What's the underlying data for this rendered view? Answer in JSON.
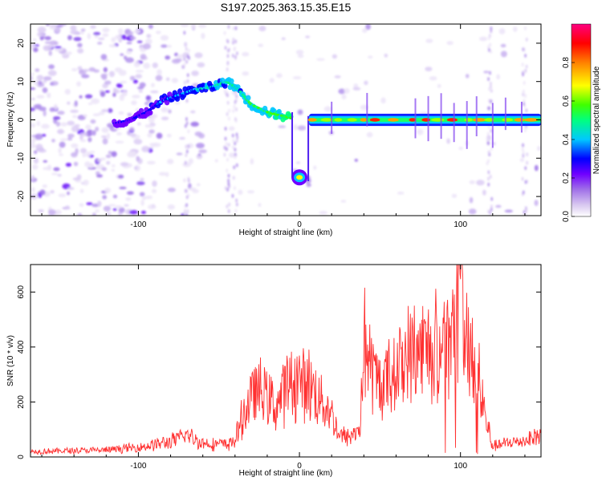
{
  "figure_title": "S197.2025.363.15.35.E15",
  "chart_data": [
    {
      "type": "heatmap",
      "title": "S197.2025.363.15.35.E15",
      "xlabel": "Height of straight line (km)",
      "ylabel": "Frequency (Hz)",
      "xlim": [
        -167,
        150
      ],
      "ylim": [
        -25,
        25
      ],
      "xticks": [
        -100,
        0,
        100
      ],
      "yticks": [
        -20,
        -10,
        0,
        10,
        20
      ],
      "colorbar": {
        "label": "Normalized spectral amplitude",
        "range": [
          0,
          1
        ],
        "ticks": [
          0.0,
          0.2,
          0.4,
          0.6,
          0.8
        ],
        "colormap": [
          "#ffffff",
          "#d8c8f0",
          "#a070e8",
          "#7000ff",
          "#0000ff",
          "#00c8ff",
          "#00ff80",
          "#40ff00",
          "#ffff00",
          "#ff8000",
          "#ff0000",
          "#ff0080"
        ]
      },
      "ridge": {
        "description": "dominant frequency trace",
        "x": [
          -115,
          -105,
          -95,
          -85,
          -75,
          -65,
          -55,
          -45,
          -38,
          -30,
          -20,
          -10,
          -5
        ],
        "y": [
          -1,
          0,
          2,
          5,
          6.5,
          8,
          8.5,
          10,
          8,
          4,
          2,
          1,
          0.5
        ],
        "gap_x": [
          -5,
          6
        ],
        "gap_feature": {
          "x": 0,
          "y": -15
        },
        "flat_segment": {
          "x_from": 6,
          "x_to": 150,
          "y": 0
        }
      }
    },
    {
      "type": "line",
      "xlabel": "Height of straight line (km)",
      "ylabel": "SNR (10 * v/v)",
      "xlim": [
        -167,
        150
      ],
      "ylim": [
        0,
        700
      ],
      "xticks": [
        -100,
        0,
        100
      ],
      "yticks": [
        0,
        200,
        400,
        600
      ],
      "series": [
        {
          "name": "SNR",
          "color": "#ff3030",
          "x": [
            -167,
            -120,
            -100,
            -80,
            -70,
            -60,
            -45,
            -40,
            -35,
            -28,
            -20,
            -15,
            -8,
            0,
            8,
            15,
            20,
            25,
            30,
            35,
            38,
            40,
            42,
            45,
            50,
            60,
            70,
            80,
            90,
            95,
            100,
            105,
            110,
            115,
            120,
            130,
            140,
            150
          ],
          "y": [
            20,
            25,
            35,
            55,
            80,
            50,
            45,
            60,
            150,
            240,
            230,
            180,
            260,
            280,
            250,
            200,
            150,
            80,
            70,
            90,
            120,
            420,
            380,
            300,
            260,
            320,
            380,
            400,
            420,
            410,
            640,
            400,
            420,
            150,
            40,
            50,
            60,
            80
          ]
        }
      ]
    }
  ]
}
